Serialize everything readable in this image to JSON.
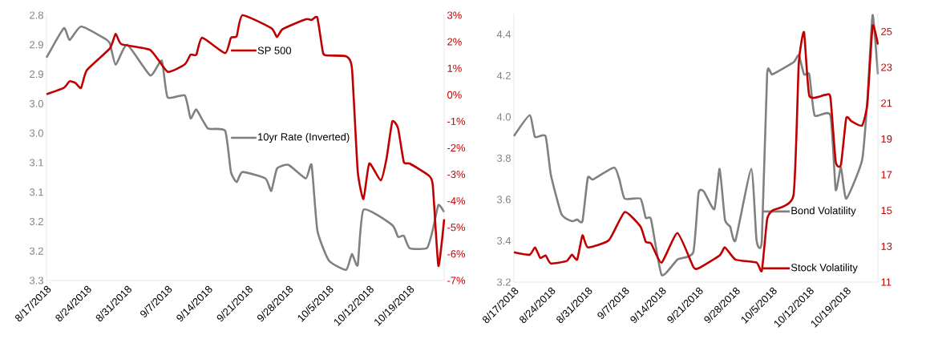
{
  "chart_data": [
    {
      "type": "line",
      "legend": "top",
      "xlim": [
        "2018-08-17",
        "2018-10-25"
      ],
      "xticks": [
        {
          "value": "2018-08-17",
          "label": "8/17/2018"
        },
        {
          "value": "2018-08-24",
          "label": "8/24/2018"
        },
        {
          "value": "2018-08-31",
          "label": "8/31/2018"
        },
        {
          "value": "2018-09-07",
          "label": "9/7/2018"
        },
        {
          "value": "2018-09-14",
          "label": "9/14/2018"
        },
        {
          "value": "2018-09-21",
          "label": "9/21/2018"
        },
        {
          "value": "2018-09-28",
          "label": "9/28/2018"
        },
        {
          "value": "2018-10-05",
          "label": "10/5/2018"
        },
        {
          "value": "2018-10-12",
          "label": "10/12/2018"
        },
        {
          "value": "2018-10-19",
          "label": "10/19/2018"
        }
      ],
      "ylim": [
        3.25,
        2.8
      ],
      "yticks": [
        {
          "value": 2.8,
          "label": "2.8"
        },
        {
          "value": 2.85,
          "label": "2.9"
        },
        {
          "value": 2.9,
          "label": "2.9"
        },
        {
          "value": 2.95,
          "label": "3.0"
        },
        {
          "value": 3.0,
          "label": "3.0"
        },
        {
          "value": 3.05,
          "label": "3.1"
        },
        {
          "value": 3.1,
          "label": "3.1"
        },
        {
          "value": 3.15,
          "label": "3.2"
        },
        {
          "value": 3.2,
          "label": "3.2"
        },
        {
          "value": 3.25,
          "label": "3.3"
        }
      ],
      "y2lim": [
        -7,
        3
      ],
      "y2ticks": [
        {
          "value": 3,
          "label": "3%"
        },
        {
          "value": 2,
          "label": "2%"
        },
        {
          "value": 1,
          "label": "1%"
        },
        {
          "value": 0,
          "label": "0%"
        },
        {
          "value": -1,
          "label": "-1%"
        },
        {
          "value": -2,
          "label": "-2%"
        },
        {
          "value": -3,
          "label": "-3%"
        },
        {
          "value": -4,
          "label": "-4%"
        },
        {
          "value": -5,
          "label": "-5%"
        },
        {
          "value": -6,
          "label": "-6%"
        },
        {
          "value": -7,
          "label": "-7%"
        }
      ],
      "series": [
        {
          "name": "10yr Rate (Inverted)",
          "color": "#808080",
          "x": [
            "2018-08-17",
            "2018-08-20",
            "2018-08-21",
            "2018-08-23",
            "2018-08-27",
            "2018-08-28",
            "2018-08-29",
            "2018-08-31",
            "2018-09-04",
            "2018-09-06",
            "2018-09-07",
            "2018-09-10",
            "2018-09-11",
            "2018-09-12",
            "2018-09-14",
            "2018-09-17",
            "2018-09-18",
            "2018-09-19",
            "2018-09-20",
            "2018-09-24",
            "2018-09-25",
            "2018-09-26",
            "2018-09-28",
            "2018-10-01",
            "2018-10-02",
            "2018-10-03",
            "2018-10-05",
            "2018-10-08",
            "2018-10-09",
            "2018-10-10",
            "2018-10-11",
            "2018-10-16",
            "2018-10-17",
            "2018-10-18",
            "2018-10-19",
            "2018-10-22",
            "2018-10-23",
            "2018-10-24",
            "2018-10-25"
          ],
          "values": [
            2.872,
            2.822,
            2.842,
            2.819,
            2.839,
            2.848,
            2.884,
            2.85,
            2.902,
            2.877,
            2.939,
            2.936,
            2.975,
            2.96,
            2.992,
            2.996,
            3.066,
            3.083,
            3.066,
            3.077,
            3.098,
            3.06,
            3.054,
            3.077,
            3.054,
            3.165,
            3.216,
            3.232,
            3.205,
            3.224,
            3.13,
            3.156,
            3.176,
            3.174,
            3.195,
            3.195,
            3.165,
            3.122,
            3.134
          ]
        },
        {
          "name": "SP 500",
          "color": "#c00000",
          "axis": "y2",
          "x": [
            "2018-08-17",
            "2018-08-20",
            "2018-08-21",
            "2018-08-22",
            "2018-08-23",
            "2018-08-24",
            "2018-08-28",
            "2018-08-29",
            "2018-08-30",
            "2018-09-04",
            "2018-09-07",
            "2018-09-10",
            "2018-09-11",
            "2018-09-12",
            "2018-09-13",
            "2018-09-17",
            "2018-09-18",
            "2018-09-19",
            "2018-09-20",
            "2018-09-25",
            "2018-09-26",
            "2018-09-27",
            "2018-10-01",
            "2018-10-02",
            "2018-10-03",
            "2018-10-04",
            "2018-10-05",
            "2018-10-08",
            "2018-10-09",
            "2018-10-10",
            "2018-10-11",
            "2018-10-12",
            "2018-10-14",
            "2018-10-15",
            "2018-10-16",
            "2018-10-17",
            "2018-10-18",
            "2018-10-19",
            "2018-10-22",
            "2018-10-23",
            "2018-10-24",
            "2018-10-25"
          ],
          "values": [
            0.02,
            0.26,
            0.51,
            0.45,
            0.26,
            0.93,
            1.75,
            2.3,
            1.91,
            1.69,
            0.87,
            1.15,
            1.51,
            1.51,
            2.15,
            1.57,
            2.15,
            2.21,
            3.0,
            2.51,
            2.18,
            2.48,
            2.85,
            2.82,
            2.91,
            1.57,
            1.48,
            1.45,
            1.0,
            -2.87,
            -3.93,
            -2.59,
            -3.23,
            -2.41,
            -1.01,
            -1.26,
            -2.53,
            -2.59,
            -2.99,
            -3.35,
            -6.45,
            -4.69
          ]
        }
      ]
    },
    {
      "type": "line",
      "legend": "bottom right",
      "xlim": [
        "2018-08-17",
        "2018-10-25"
      ],
      "xticks": [
        {
          "value": "2018-08-17",
          "label": "8/17/2018"
        },
        {
          "value": "2018-08-24",
          "label": "8/24/2018"
        },
        {
          "value": "2018-08-31",
          "label": "8/31/2018"
        },
        {
          "value": "2018-09-07",
          "label": "9/7/2018"
        },
        {
          "value": "2018-09-14",
          "label": "9/14/2018"
        },
        {
          "value": "2018-09-21",
          "label": "9/21/2018"
        },
        {
          "value": "2018-09-28",
          "label": "9/28/2018"
        },
        {
          "value": "2018-10-05",
          "label": "10/5/2018"
        },
        {
          "value": "2018-10-12",
          "label": "10/12/2018"
        },
        {
          "value": "2018-10-19",
          "label": "10/19/2018"
        }
      ],
      "ylim": [
        3.2,
        4.5
      ],
      "yticks": [
        3.2,
        3.4,
        3.6,
        3.8,
        {
          "value": 4,
          "label": "4.0"
        },
        4.2,
        4.4
      ],
      "y2lim": [
        11,
        26
      ],
      "y2ticks": [
        11,
        13,
        15,
        17,
        19,
        21,
        23,
        25
      ],
      "series": [
        {
          "name": "Bond Volatility",
          "color": "#808080",
          "x": [
            "2018-08-17",
            "2018-08-20",
            "2018-08-21",
            "2018-08-23",
            "2018-08-24",
            "2018-08-26",
            "2018-08-28",
            "2018-08-29",
            "2018-08-30",
            "2018-08-31",
            "2018-09-01",
            "2018-09-05",
            "2018-09-06",
            "2018-09-07",
            "2018-09-10",
            "2018-09-11",
            "2018-09-12",
            "2018-09-14",
            "2018-09-17",
            "2018-09-20",
            "2018-09-21",
            "2018-09-22",
            "2018-09-24",
            "2018-09-25",
            "2018-09-26",
            "2018-09-27",
            "2018-09-28",
            "2018-10-01",
            "2018-10-02",
            "2018-10-03",
            "2018-10-04",
            "2018-10-05",
            "2018-10-09",
            "2018-10-10",
            "2018-10-11",
            "2018-10-12",
            "2018-10-13",
            "2018-10-16",
            "2018-10-17",
            "2018-10-18",
            "2018-10-19",
            "2018-10-22",
            "2018-10-23",
            "2018-10-24",
            "2018-10-25"
          ],
          "values": [
            3.907,
            4.008,
            3.903,
            3.907,
            3.72,
            3.53,
            3.495,
            3.503,
            3.495,
            3.705,
            3.697,
            3.755,
            3.697,
            3.604,
            3.604,
            3.511,
            3.503,
            3.235,
            3.309,
            3.344,
            3.631,
            3.639,
            3.553,
            3.748,
            3.503,
            3.468,
            3.402,
            3.748,
            3.402,
            3.402,
            4.206,
            4.206,
            4.264,
            4.299,
            4.206,
            4.206,
            4.008,
            4.008,
            3.647,
            3.755,
            3.604,
            3.79,
            4.078,
            4.493,
            4.206
          ]
        },
        {
          "name": "Stock Volatility",
          "color": "#c00000",
          "axis": "y2",
          "x": [
            "2018-08-17",
            "2018-08-20",
            "2018-08-21",
            "2018-08-22",
            "2018-08-23",
            "2018-08-24",
            "2018-08-27",
            "2018-08-28",
            "2018-08-29",
            "2018-08-30",
            "2018-08-31",
            "2018-09-04",
            "2018-09-07",
            "2018-09-10",
            "2018-09-11",
            "2018-09-12",
            "2018-09-14",
            "2018-09-17",
            "2018-09-20",
            "2018-09-21",
            "2018-09-25",
            "2018-09-26",
            "2018-09-28",
            "2018-10-02",
            "2018-10-03",
            "2018-10-04",
            "2018-10-05",
            "2018-10-09",
            "2018-10-10",
            "2018-10-11",
            "2018-10-12",
            "2018-10-15",
            "2018-10-16",
            "2018-10-17",
            "2018-10-18",
            "2018-10-19",
            "2018-10-20",
            "2018-10-22",
            "2018-10-23",
            "2018-10-24",
            "2018-10-25"
          ],
          "values": [
            12.67,
            12.53,
            12.94,
            12.35,
            12.49,
            12.04,
            12.18,
            12.53,
            12.26,
            13.61,
            12.94,
            13.34,
            14.91,
            14.1,
            13.25,
            13.16,
            12.09,
            13.74,
            11.86,
            11.77,
            12.49,
            12.94,
            12.26,
            12.09,
            11.64,
            14.51,
            15.0,
            15.85,
            23.21,
            24.96,
            21.41,
            21.46,
            21.32,
            17.74,
            17.56,
            20.16,
            19.98,
            19.75,
            20.96,
            25.31,
            24.28
          ]
        }
      ]
    }
  ]
}
